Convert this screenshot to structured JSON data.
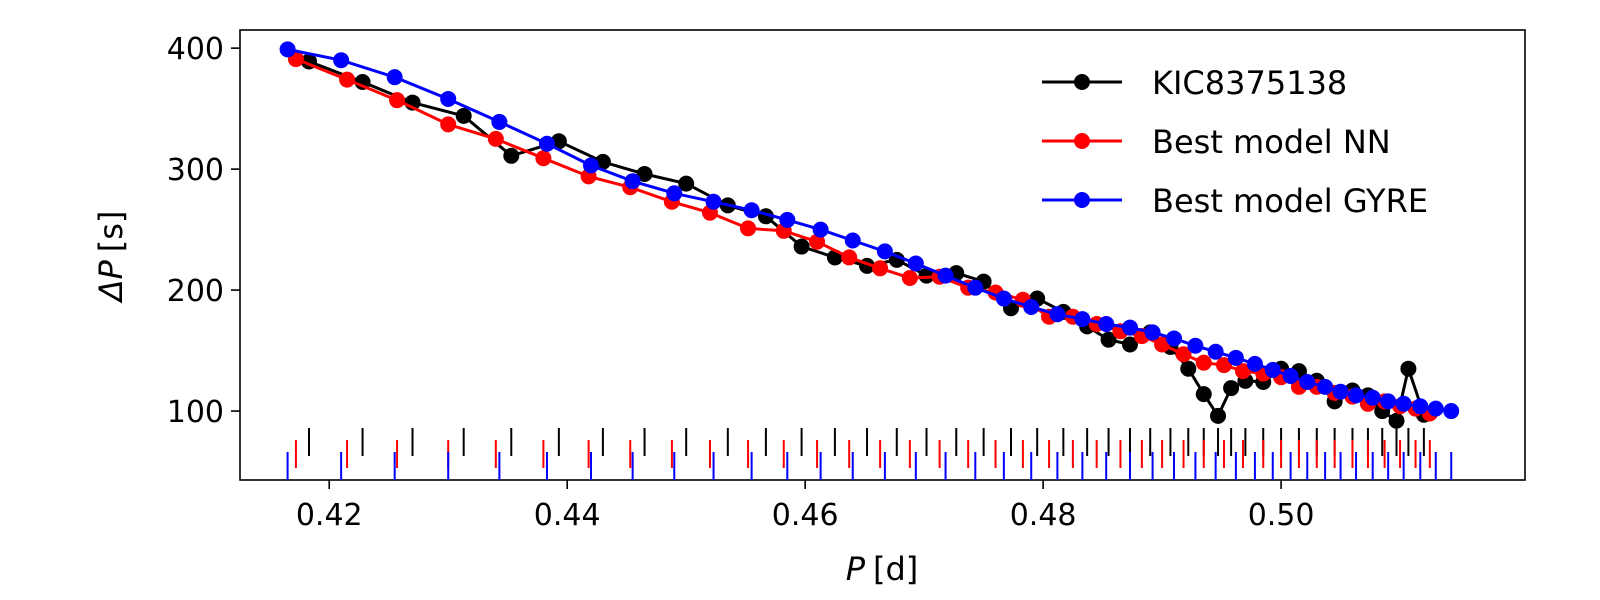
{
  "chart_data": {
    "type": "line",
    "xlabel": {
      "symbol": "P",
      "unit": "[d]"
    },
    "ylabel": {
      "symbol": "ΔP",
      "unit": "[s]"
    },
    "xlim": [
      0.4125,
      0.5205
    ],
    "ylim": [
      43,
      415
    ],
    "xticks": [
      0.42,
      0.44,
      0.46,
      0.48,
      0.5
    ],
    "xtick_labels": [
      "0.42",
      "0.44",
      "0.46",
      "0.48",
      "0.50"
    ],
    "yticks": [
      100,
      200,
      300,
      400
    ],
    "ytick_labels": [
      "100",
      "200",
      "300",
      "400"
    ],
    "legend_position": "top-right",
    "series": [
      {
        "name": "KIC8375138",
        "color": "#000000",
        "points": [
          [
            0.4183,
            389
          ],
          [
            0.4228,
            372
          ],
          [
            0.427,
            355
          ],
          [
            0.4313,
            344
          ],
          [
            0.4353,
            311
          ],
          [
            0.4393,
            323
          ],
          [
            0.443,
            306
          ],
          [
            0.4465,
            296
          ],
          [
            0.45,
            288
          ],
          [
            0.4535,
            270
          ],
          [
            0.4567,
            261
          ],
          [
            0.4597,
            236
          ],
          [
            0.4625,
            227
          ],
          [
            0.4652,
            220
          ],
          [
            0.4677,
            225
          ],
          [
            0.4702,
            212
          ],
          [
            0.4727,
            214
          ],
          [
            0.475,
            207
          ],
          [
            0.4773,
            185
          ],
          [
            0.4795,
            193
          ],
          [
            0.4817,
            182
          ],
          [
            0.4837,
            170
          ],
          [
            0.4855,
            159
          ],
          [
            0.4873,
            155
          ],
          [
            0.489,
            165
          ],
          [
            0.4907,
            153
          ],
          [
            0.4922,
            135
          ],
          [
            0.4935,
            114
          ],
          [
            0.4947,
            96
          ],
          [
            0.4958,
            119
          ],
          [
            0.497,
            125
          ],
          [
            0.4985,
            124
          ],
          [
            0.5,
            135
          ],
          [
            0.5015,
            133
          ],
          [
            0.503,
            125
          ],
          [
            0.5045,
            108
          ],
          [
            0.506,
            117
          ],
          [
            0.5073,
            113
          ],
          [
            0.5085,
            100
          ],
          [
            0.5097,
            92
          ],
          [
            0.5107,
            135
          ],
          [
            0.512,
            97
          ]
        ]
      },
      {
        "name": "Best model NN",
        "color": "#ff0000",
        "points": [
          [
            0.4172,
            391
          ],
          [
            0.4215,
            374
          ],
          [
            0.4257,
            357
          ],
          [
            0.43,
            337
          ],
          [
            0.434,
            325
          ],
          [
            0.438,
            309
          ],
          [
            0.4418,
            294
          ],
          [
            0.4453,
            285
          ],
          [
            0.4488,
            273
          ],
          [
            0.452,
            264
          ],
          [
            0.4552,
            251
          ],
          [
            0.4582,
            249
          ],
          [
            0.461,
            240
          ],
          [
            0.4637,
            227
          ],
          [
            0.4663,
            218
          ],
          [
            0.4688,
            210
          ],
          [
            0.4713,
            211
          ],
          [
            0.4737,
            202
          ],
          [
            0.476,
            198
          ],
          [
            0.4783,
            192
          ],
          [
            0.4805,
            178
          ],
          [
            0.4825,
            178
          ],
          [
            0.4845,
            172
          ],
          [
            0.4865,
            166
          ],
          [
            0.4883,
            162
          ],
          [
            0.49,
            155
          ],
          [
            0.4918,
            147
          ],
          [
            0.4935,
            140
          ],
          [
            0.4952,
            138
          ],
          [
            0.4968,
            133
          ],
          [
            0.4985,
            131
          ],
          [
            0.5,
            128
          ],
          [
            0.5015,
            120
          ],
          [
            0.503,
            120
          ],
          [
            0.5045,
            115
          ],
          [
            0.506,
            112
          ],
          [
            0.5073,
            106
          ],
          [
            0.5087,
            108
          ],
          [
            0.51,
            104
          ],
          [
            0.5113,
            102
          ],
          [
            0.5125,
            98
          ]
        ]
      },
      {
        "name": "Best model GYRE",
        "color": "#0000ff",
        "points": [
          [
            0.4165,
            399
          ],
          [
            0.421,
            390
          ],
          [
            0.4255,
            376
          ],
          [
            0.43,
            358
          ],
          [
            0.4343,
            339
          ],
          [
            0.4383,
            321
          ],
          [
            0.442,
            303
          ],
          [
            0.4455,
            290
          ],
          [
            0.449,
            280
          ],
          [
            0.4523,
            273
          ],
          [
            0.4555,
            266
          ],
          [
            0.4585,
            258
          ],
          [
            0.4613,
            250
          ],
          [
            0.464,
            241
          ],
          [
            0.4667,
            232
          ],
          [
            0.4693,
            222
          ],
          [
            0.4718,
            212
          ],
          [
            0.4743,
            202
          ],
          [
            0.4767,
            193
          ],
          [
            0.479,
            186
          ],
          [
            0.4812,
            180
          ],
          [
            0.4833,
            176
          ],
          [
            0.4853,
            172
          ],
          [
            0.4873,
            169
          ],
          [
            0.4892,
            165
          ],
          [
            0.491,
            160
          ],
          [
            0.4928,
            154
          ],
          [
            0.4945,
            149
          ],
          [
            0.4962,
            144
          ],
          [
            0.4978,
            139
          ],
          [
            0.4993,
            134
          ],
          [
            0.5008,
            129
          ],
          [
            0.5022,
            124
          ],
          [
            0.5037,
            120
          ],
          [
            0.505,
            116
          ],
          [
            0.5063,
            113
          ],
          [
            0.5077,
            111
          ],
          [
            0.509,
            108
          ],
          [
            0.5103,
            106
          ],
          [
            0.5117,
            104
          ],
          [
            0.513,
            102
          ],
          [
            0.5143,
            100
          ]
        ]
      }
    ]
  }
}
